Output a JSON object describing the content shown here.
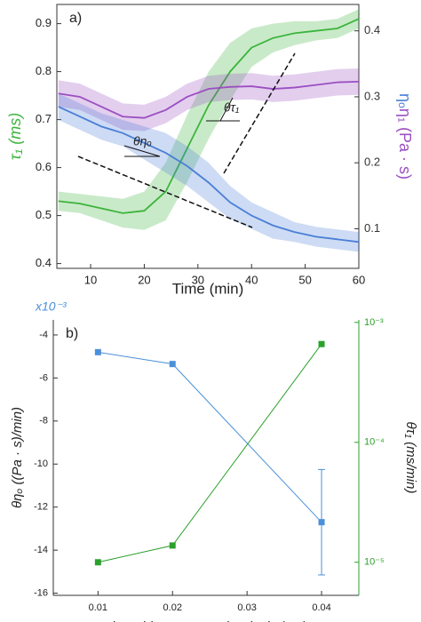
{
  "chart_data": [
    {
      "type": "line",
      "panel": "a)",
      "xlabel": "Time (min)",
      "ylabel": "τ₁ (ms)",
      "y2label": [
        "ηₒ",
        "η₁ (Pa · s)"
      ],
      "annotations": [
        "θηₒ",
        "θτ₁"
      ],
      "x": [
        4,
        8,
        12,
        16,
        20,
        24,
        28,
        32,
        36,
        40,
        44,
        48,
        52,
        56,
        60
      ],
      "xlim": [
        3.7,
        60
      ],
      "xticks": [
        10,
        20,
        30,
        40,
        50,
        60
      ],
      "ylim": [
        0.39,
        0.94
      ],
      "yticks": [
        0.4,
        0.5,
        0.6,
        0.7,
        0.8,
        0.9
      ],
      "y2lim": [
        0.04,
        0.44
      ],
      "y2ticks": [
        0.1,
        0.2,
        0.3,
        0.4
      ],
      "series": [
        {
          "color": "#3cb43c",
          "values": [
            0.53,
            0.525,
            0.515,
            0.505,
            0.51,
            0.55,
            0.64,
            0.73,
            0.8,
            0.85,
            0.87,
            0.88,
            0.885,
            0.89,
            0.91
          ],
          "errors": [
            0.02,
            0.02,
            0.025,
            0.03,
            0.04,
            0.06,
            0.07,
            0.07,
            0.06,
            0.04,
            0.03,
            0.025,
            0.02,
            0.02,
            0.02
          ]
        },
        {
          "color": "#9b4fc2",
          "axis": "y2",
          "values": [
            0.305,
            0.3,
            0.285,
            0.27,
            0.268,
            0.28,
            0.3,
            0.312,
            0.315,
            0.316,
            0.312,
            0.314,
            0.318,
            0.322,
            0.323
          ],
          "errors": [
            0.02,
            0.02,
            0.02,
            0.02,
            0.02,
            0.02,
            0.02,
            0.02,
            0.02,
            0.02,
            0.02,
            0.02,
            0.02,
            0.02,
            0.02
          ]
        },
        {
          "color": "#4a7fd6",
          "axis": "y2",
          "values": [
            0.285,
            0.27,
            0.255,
            0.245,
            0.23,
            0.215,
            0.195,
            0.17,
            0.14,
            0.12,
            0.105,
            0.095,
            0.088,
            0.084,
            0.08
          ],
          "errors": [
            0.02,
            0.02,
            0.02,
            0.02,
            0.025,
            0.03,
            0.03,
            0.03,
            0.025,
            0.02,
            0.02,
            0.015,
            0.015,
            0.015,
            0.015
          ]
        }
      ]
    },
    {
      "type": "scatter",
      "panel": "b)",
      "xlabel": "Thrombin concentration (units/mL)",
      "ylabel": "θηₒ ((Pa · s)/min)",
      "y2label": "θτ₁ (ms/min)",
      "multiplier": "x10⁻³",
      "x": [
        0.01,
        0.02,
        0.04
      ],
      "xlim": [
        0.004,
        0.045
      ],
      "xticks": [
        0.01,
        0.02,
        0.03,
        0.04
      ],
      "ylim": [
        -16.1,
        -3.3
      ],
      "yticks": [
        -4,
        -6,
        -8,
        -10,
        -12,
        -14,
        -16
      ],
      "y2lim": [
        5.3e-06,
        0.00105
      ],
      "y2log": true,
      "y2ticks": [
        {
          "value": 1e-05,
          "label": "10⁻⁵"
        },
        {
          "value": 0.0001,
          "label": "10⁻⁴"
        },
        {
          "value": 0.001,
          "label": "10⁻³"
        }
      ],
      "series": [
        {
          "color": "#4a90d9",
          "values": [
            -4.8,
            -5.35,
            -12.7
          ],
          "errors": [
            null,
            null,
            2.45
          ]
        },
        {
          "color": "#2ca02c",
          "axis": "y2",
          "values": [
            1e-05,
            1.38e-05,
            0.00066
          ]
        }
      ]
    }
  ]
}
